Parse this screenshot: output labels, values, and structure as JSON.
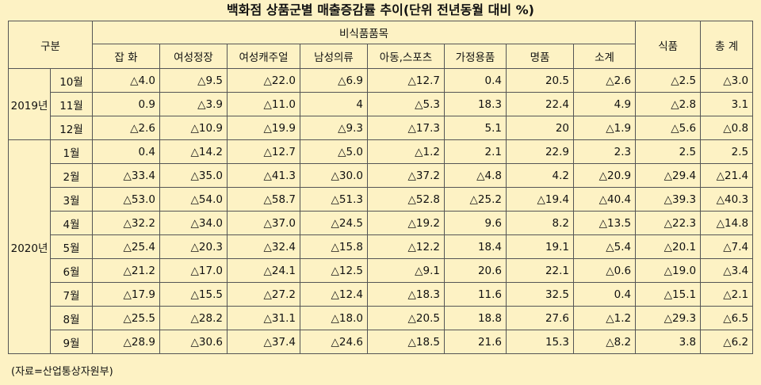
{
  "title": "백화점 상품군별 매출증감률 추이(단위 전년동월 대비 %)",
  "header": {
    "group_label": "구분",
    "nonfood_label": "비식품품목",
    "categories": [
      "잡 화",
      "여성정장",
      "여성캐주얼",
      "남성의류",
      "아동,스포츠",
      "가정용품",
      "명품",
      "소계"
    ],
    "food_label": "식품",
    "total_label": "총 계"
  },
  "groups": [
    {
      "year": "2019년",
      "rows": [
        {
          "month": "10월",
          "values": [
            "△4.0",
            "△9.5",
            "△22.0",
            "△6.9",
            "△12.7",
            "0.4",
            "20.5",
            "△2.6",
            "△2.5",
            "△3.0"
          ]
        },
        {
          "month": "11월",
          "values": [
            "0.9",
            "△3.9",
            "△11.0",
            "4",
            "△5.3",
            "18.3",
            "22.4",
            "4.9",
            "△2.8",
            "3.1"
          ]
        },
        {
          "month": "12월",
          "values": [
            "△2.6",
            "△10.9",
            "△19.9",
            "△9.3",
            "△17.3",
            "5.1",
            "20",
            "△1.9",
            "△5.6",
            "△0.8"
          ]
        }
      ]
    },
    {
      "year": "2020년",
      "rows": [
        {
          "month": "1월",
          "values": [
            "0.4",
            "△14.2",
            "△12.7",
            "△5.0",
            "△1.2",
            "2.1",
            "22.9",
            "2.3",
            "2.5",
            "2.5"
          ]
        },
        {
          "month": "2월",
          "values": [
            "△33.4",
            "△35.0",
            "△41.3",
            "△30.0",
            "△37.2",
            "△4.8",
            "4.2",
            "△20.9",
            "△29.4",
            "△21.4"
          ]
        },
        {
          "month": "3월",
          "values": [
            "△53.0",
            "△54.0",
            "△58.7",
            "△51.3",
            "△52.8",
            "△25.2",
            "△19.4",
            "△40.4",
            "△39.3",
            "△40.3"
          ]
        },
        {
          "month": "4월",
          "values": [
            "△32.2",
            "△34.0",
            "△37.0",
            "△24.5",
            "△19.2",
            "9.6",
            "8.2",
            "△13.5",
            "△22.3",
            "△14.8"
          ]
        },
        {
          "month": "5월",
          "values": [
            "△25.4",
            "△20.3",
            "△32.4",
            "△15.8",
            "△12.2",
            "18.4",
            "19.1",
            "△5.4",
            "△20.1",
            "△7.4"
          ]
        },
        {
          "month": "6월",
          "values": [
            "△21.2",
            "△17.0",
            "△24.1",
            "△12.5",
            "△9.1",
            "20.6",
            "22.1",
            "△0.6",
            "△19.0",
            "△3.4"
          ]
        },
        {
          "month": "7월",
          "values": [
            "△17.9",
            "△15.5",
            "△27.2",
            "△12.4",
            "△18.3",
            "11.6",
            "32.5",
            "0.4",
            "△15.1",
            "△2.1"
          ]
        },
        {
          "month": "8월",
          "values": [
            "△25.5",
            "△28.2",
            "△31.1",
            "△18.0",
            "△20.5",
            "18.8",
            "27.6",
            "△1.2",
            "△29.3",
            "△6.5"
          ]
        },
        {
          "month": "9월",
          "values": [
            "△28.9",
            "△30.6",
            "△37.4",
            "△24.6",
            "△18.5",
            "21.6",
            "15.3",
            "△8.2",
            "3.8",
            "△6.2"
          ]
        }
      ]
    }
  ],
  "source": "(자료=산업통상자원부)"
}
